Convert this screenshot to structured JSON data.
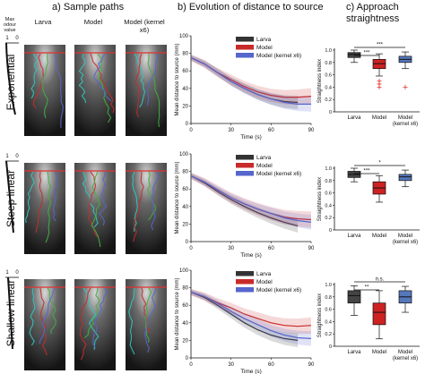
{
  "headers": {
    "a": "a) Sample paths",
    "b": "b) Evolution of distance to source",
    "c_line1": "c) Approach",
    "c_line2": "straightness"
  },
  "colors": {
    "larva": "#333333",
    "model": "#c92a2a",
    "kernel": "#5566cc",
    "red_line": "#e03030",
    "cyan": "#30c8c0",
    "green": "#40b040"
  },
  "panel_a": {
    "max_odour_label": "Max odour value",
    "scale_top": "1",
    "scale_zero": "0",
    "columns": [
      "Larva",
      "Model",
      "Model (kernel x6)"
    ]
  },
  "rows": [
    {
      "label": "Exponential"
    },
    {
      "label": "Steep linear"
    },
    {
      "label": "Shallow linear"
    }
  ],
  "legend": [
    "Larva",
    "Model",
    "Model (kernel x6)"
  ],
  "chart_data": [
    {
      "type": "line",
      "row": "Exponential",
      "xlabel": "Time (s)",
      "ylabel": "Mean distance to source (mm)",
      "xlim": [
        0,
        90
      ],
      "ylim": [
        0,
        100
      ],
      "xticks": [
        "0",
        "30",
        "60",
        "90"
      ],
      "yticks": [
        "0",
        "20",
        "40",
        "60",
        "80",
        "100"
      ],
      "series": [
        {
          "name": "Larva",
          "x": [
            0,
            10,
            20,
            30,
            40,
            50,
            60,
            70,
            80
          ],
          "y": [
            75,
            68,
            58,
            48,
            40,
            33,
            28,
            25,
            24
          ]
        },
        {
          "name": "Model",
          "x": [
            0,
            10,
            20,
            30,
            40,
            50,
            60,
            70,
            80,
            90
          ],
          "y": [
            75,
            68,
            58,
            50,
            42,
            36,
            32,
            30,
            30,
            31
          ]
        },
        {
          "name": "Model (kernel x6)",
          "x": [
            0,
            10,
            20,
            30,
            40,
            50,
            60,
            70,
            80,
            90
          ],
          "y": [
            75,
            68,
            58,
            48,
            40,
            33,
            28,
            24,
            22,
            22
          ]
        }
      ]
    },
    {
      "type": "line",
      "row": "Steep linear",
      "xlabel": "Time (s)",
      "ylabel": "Mean distance to source (mm)",
      "xlim": [
        0,
        90
      ],
      "ylim": [
        0,
        100
      ],
      "xticks": [
        "0",
        "30",
        "60",
        "90"
      ],
      "yticks": [
        "0",
        "20",
        "40",
        "60",
        "80",
        "100"
      ],
      "series": [
        {
          "name": "Larva",
          "x": [
            0,
            10,
            20,
            30,
            40,
            50,
            60,
            70,
            80
          ],
          "y": [
            75,
            67,
            57,
            48,
            40,
            33,
            27,
            22,
            18
          ]
        },
        {
          "name": "Model",
          "x": [
            0,
            10,
            20,
            30,
            40,
            50,
            60,
            70,
            80,
            90
          ],
          "y": [
            75,
            68,
            59,
            50,
            43,
            37,
            32,
            28,
            26,
            25
          ]
        },
        {
          "name": "Model (kernel x6)",
          "x": [
            0,
            10,
            20,
            30,
            40,
            50,
            60,
            70,
            80,
            90
          ],
          "y": [
            75,
            68,
            59,
            50,
            43,
            37,
            32,
            27,
            24,
            22
          ]
        }
      ]
    },
    {
      "type": "line",
      "row": "Shallow linear",
      "xlabel": "Time (s)",
      "ylabel": "Mean distance to source (mm)",
      "xlim": [
        0,
        90
      ],
      "ylim": [
        0,
        100
      ],
      "xticks": [
        "0",
        "30",
        "60",
        "90"
      ],
      "yticks": [
        "0",
        "20",
        "40",
        "60",
        "80",
        "100"
      ],
      "series": [
        {
          "name": "Larva",
          "x": [
            0,
            10,
            20,
            30,
            40,
            50,
            60,
            70,
            80
          ],
          "y": [
            75,
            69,
            60,
            50,
            40,
            32,
            26,
            22,
            20
          ]
        },
        {
          "name": "Model",
          "x": [
            0,
            10,
            20,
            30,
            40,
            50,
            60,
            70,
            80,
            90
          ],
          "y": [
            75,
            70,
            63,
            57,
            50,
            45,
            40,
            37,
            36,
            37
          ]
        },
        {
          "name": "Model (kernel x6)",
          "x": [
            0,
            10,
            20,
            30,
            40,
            50,
            60,
            70,
            80,
            90
          ],
          "y": [
            75,
            70,
            62,
            53,
            45,
            38,
            31,
            26,
            23,
            22
          ]
        }
      ]
    },
    {
      "type": "box",
      "row": "Exponential",
      "ylabel": "Straightness index",
      "ylim": [
        0,
        1.0
      ],
      "yticks": [
        "0",
        "0.2",
        "0.4",
        "0.6",
        "0.8",
        "1.0"
      ],
      "categories": [
        "Larva",
        "Model",
        "Model (kernel x6)"
      ],
      "boxes": [
        {
          "min": 0.8,
          "q1": 0.88,
          "median": 0.93,
          "q3": 0.96,
          "max": 1.0
        },
        {
          "min": 0.58,
          "q1": 0.7,
          "median": 0.78,
          "q3": 0.85,
          "max": 0.94,
          "outliers": [
            0.5,
            0.45,
            0.4
          ]
        },
        {
          "min": 0.7,
          "q1": 0.8,
          "median": 0.85,
          "q3": 0.9,
          "max": 0.97,
          "outliers": [
            0.4
          ]
        }
      ],
      "significance": [
        {
          "pair": [
            0,
            1
          ],
          "label": "***"
        },
        {
          "pair": [
            0,
            2
          ],
          "label": "***"
        }
      ]
    },
    {
      "type": "box",
      "row": "Steep linear",
      "ylabel": "Straightness index",
      "ylim": [
        0,
        1.0
      ],
      "yticks": [
        "0",
        "0.2",
        "0.4",
        "0.6",
        "0.8",
        "1.0"
      ],
      "categories": [
        "Larva",
        "Model",
        "Model (kernel x6)"
      ],
      "boxes": [
        {
          "min": 0.78,
          "q1": 0.85,
          "median": 0.9,
          "q3": 0.95,
          "max": 1.0
        },
        {
          "min": 0.45,
          "q1": 0.58,
          "median": 0.68,
          "q3": 0.78,
          "max": 0.88
        },
        {
          "min": 0.7,
          "q1": 0.8,
          "median": 0.86,
          "q3": 0.9,
          "max": 0.97
        }
      ],
      "significance": [
        {
          "pair": [
            0,
            1
          ],
          "label": "***"
        },
        {
          "pair": [
            0,
            2
          ],
          "label": "*"
        }
      ]
    },
    {
      "type": "box",
      "row": "Shallow linear",
      "ylabel": "Straightness index",
      "ylim": [
        0,
        1.0
      ],
      "yticks": [
        "0",
        "0.2",
        "0.4",
        "0.6",
        "0.8",
        "1.0"
      ],
      "categories": [
        "Larva",
        "Model",
        "Model (kernel x6)"
      ],
      "boxes": [
        {
          "min": 0.5,
          "q1": 0.7,
          "median": 0.82,
          "q3": 0.9,
          "max": 0.98
        },
        {
          "min": 0.12,
          "q1": 0.35,
          "median": 0.55,
          "q3": 0.7,
          "max": 0.9
        },
        {
          "min": 0.55,
          "q1": 0.7,
          "median": 0.8,
          "q3": 0.9,
          "max": 0.97
        }
      ],
      "significance": [
        {
          "pair": [
            0,
            1
          ],
          "label": "**"
        },
        {
          "pair": [
            0,
            2
          ],
          "label": "n.s."
        }
      ]
    }
  ]
}
